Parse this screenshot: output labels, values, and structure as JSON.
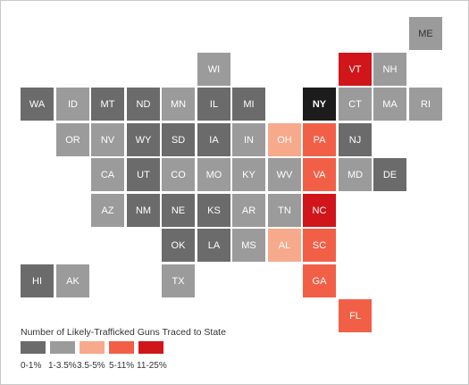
{
  "colors": {
    "bin_0": "#6b6b6b",
    "bin_1": "#9b9b9b",
    "bin_2": "#f7a98b",
    "bin_3": "#f25f47",
    "bin_4": "#d0151b",
    "ny": "#1c1c1c"
  },
  "legend": {
    "title": "Number of Likely-Trafficked Guns Traced to State",
    "bins": [
      {
        "label": "0-1%",
        "color": "#6b6b6b"
      },
      {
        "label": "1-3.5%",
        "color": "#9b9b9b"
      },
      {
        "label": "3.5-5%",
        "color": "#f7a98b"
      },
      {
        "label": "5-11%",
        "color": "#f25f47"
      },
      {
        "label": "11-25%",
        "color": "#d0151b"
      }
    ]
  },
  "states": [
    {
      "abbr": "ME",
      "row": 0,
      "col": 11,
      "bin": 1
    },
    {
      "abbr": "WI",
      "row": 1,
      "col": 5,
      "bin": 1
    },
    {
      "abbr": "VT",
      "row": 1,
      "col": 9,
      "bin": 4
    },
    {
      "abbr": "NH",
      "row": 1,
      "col": 10,
      "bin": 1
    },
    {
      "abbr": "WA",
      "row": 2,
      "col": 0,
      "bin": 0
    },
    {
      "abbr": "ID",
      "row": 2,
      "col": 1,
      "bin": 1
    },
    {
      "abbr": "MT",
      "row": 2,
      "col": 2,
      "bin": 0
    },
    {
      "abbr": "ND",
      "row": 2,
      "col": 3,
      "bin": 0
    },
    {
      "abbr": "MN",
      "row": 2,
      "col": 4,
      "bin": 1
    },
    {
      "abbr": "IL",
      "row": 2,
      "col": 5,
      "bin": 0
    },
    {
      "abbr": "MI",
      "row": 2,
      "col": 6,
      "bin": 0
    },
    {
      "abbr": "NY",
      "row": 2,
      "col": 8,
      "bin": "ny"
    },
    {
      "abbr": "CT",
      "row": 2,
      "col": 9,
      "bin": 1
    },
    {
      "abbr": "MA",
      "row": 2,
      "col": 10,
      "bin": 1
    },
    {
      "abbr": "RI",
      "row": 2,
      "col": 11,
      "bin": 1
    },
    {
      "abbr": "OR",
      "row": 3,
      "col": 1,
      "bin": 1
    },
    {
      "abbr": "NV",
      "row": 3,
      "col": 2,
      "bin": 1
    },
    {
      "abbr": "WY",
      "row": 3,
      "col": 3,
      "bin": 0
    },
    {
      "abbr": "SD",
      "row": 3,
      "col": 4,
      "bin": 0
    },
    {
      "abbr": "IA",
      "row": 3,
      "col": 5,
      "bin": 0
    },
    {
      "abbr": "IN",
      "row": 3,
      "col": 6,
      "bin": 1
    },
    {
      "abbr": "OH",
      "row": 3,
      "col": 7,
      "bin": 2
    },
    {
      "abbr": "PA",
      "row": 3,
      "col": 8,
      "bin": 3
    },
    {
      "abbr": "NJ",
      "row": 3,
      "col": 9,
      "bin": 0
    },
    {
      "abbr": "CA",
      "row": 4,
      "col": 2,
      "bin": 1
    },
    {
      "abbr": "UT",
      "row": 4,
      "col": 3,
      "bin": 0
    },
    {
      "abbr": "CO",
      "row": 4,
      "col": 4,
      "bin": 1
    },
    {
      "abbr": "MO",
      "row": 4,
      "col": 5,
      "bin": 1
    },
    {
      "abbr": "KY",
      "row": 4,
      "col": 6,
      "bin": 1
    },
    {
      "abbr": "WV",
      "row": 4,
      "col": 7,
      "bin": 1
    },
    {
      "abbr": "VA",
      "row": 4,
      "col": 8,
      "bin": 3
    },
    {
      "abbr": "MD",
      "row": 4,
      "col": 9,
      "bin": 1
    },
    {
      "abbr": "DE",
      "row": 4,
      "col": 10,
      "bin": 0
    },
    {
      "abbr": "AZ",
      "row": 5,
      "col": 2,
      "bin": 1
    },
    {
      "abbr": "NM",
      "row": 5,
      "col": 3,
      "bin": 0
    },
    {
      "abbr": "NE",
      "row": 5,
      "col": 4,
      "bin": 0
    },
    {
      "abbr": "KS",
      "row": 5,
      "col": 5,
      "bin": 0
    },
    {
      "abbr": "AR",
      "row": 5,
      "col": 6,
      "bin": 1
    },
    {
      "abbr": "TN",
      "row": 5,
      "col": 7,
      "bin": 1
    },
    {
      "abbr": "NC",
      "row": 5,
      "col": 8,
      "bin": 4
    },
    {
      "abbr": "OK",
      "row": 6,
      "col": 4,
      "bin": 0
    },
    {
      "abbr": "LA",
      "row": 6,
      "col": 5,
      "bin": 0
    },
    {
      "abbr": "MS",
      "row": 6,
      "col": 6,
      "bin": 1
    },
    {
      "abbr": "AL",
      "row": 6,
      "col": 7,
      "bin": 2
    },
    {
      "abbr": "SC",
      "row": 6,
      "col": 8,
      "bin": 3
    },
    {
      "abbr": "HI",
      "row": 7,
      "col": 0,
      "bin": 0
    },
    {
      "abbr": "AK",
      "row": 7,
      "col": 1,
      "bin": 1
    },
    {
      "abbr": "TX",
      "row": 7,
      "col": 4,
      "bin": 1
    },
    {
      "abbr": "GA",
      "row": 7,
      "col": 8,
      "bin": 3
    },
    {
      "abbr": "FL",
      "row": 8,
      "col": 9,
      "bin": 3
    }
  ]
}
